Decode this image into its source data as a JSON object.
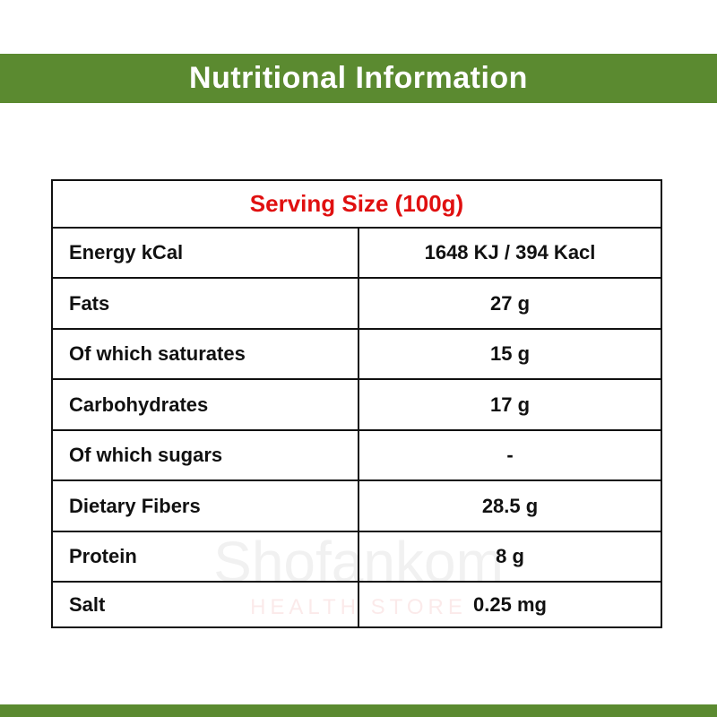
{
  "header": {
    "title": "Nutritional Information"
  },
  "watermark": {
    "brand": "Shofankom",
    "tagline": "HEALTH STORE"
  },
  "table": {
    "caption": "Serving Size (100g)",
    "rows": [
      [
        "Energy kCal",
        "1648 KJ / 394 Kacl"
      ],
      [
        "Fats",
        "27 g"
      ],
      [
        "Of which saturates",
        "15 g"
      ],
      [
        "Carbohydrates",
        "17 g"
      ],
      [
        "Of which sugars",
        "-"
      ],
      [
        "Dietary Fibers",
        "28.5 g"
      ],
      [
        "Protein",
        "8 g"
      ],
      [
        "Salt",
        "0.25 mg"
      ]
    ]
  }
}
